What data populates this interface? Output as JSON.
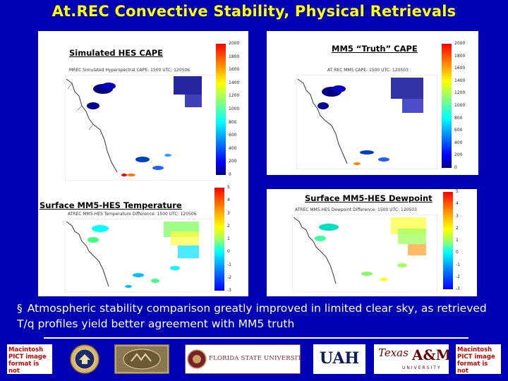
{
  "slide": {
    "title": "At.REC Convective Stability, Physical Retrievals",
    "bullet_mark": "§",
    "bullet_text": "Atmospheric stability comparison greatly improved in limited clear sky, as retrieved T/q profiles yield better agreement with MM5 truth"
  },
  "panels": [
    {
      "label": "Simulated HES CAPE",
      "caption": "MREC Simulated Hyperspectral CAPE: 1500 UTC: 120506",
      "ticks": [
        "2000",
        "1800",
        "1600",
        "1400",
        "1200",
        "1000",
        "800",
        "600",
        "400",
        "200",
        "0"
      ]
    },
    {
      "label": "MM5 “Truth” CAPE",
      "caption": "AT REC MM5 CAPE: 1500 UTC: 120503",
      "ticks": [
        "2000",
        "1800",
        "1600",
        "1400",
        "1200",
        "1000",
        "800",
        "600",
        "400",
        "200",
        "0"
      ]
    },
    {
      "label": "Surface MM5-HES Temperature",
      "caption": "ATREC MM5-HES Temperature Difference: 1500 UTC: 120506",
      "ticks": [
        "5",
        "4",
        "3",
        "2",
        "1",
        "0",
        "-1",
        "-2",
        "-3"
      ]
    },
    {
      "label": "Surface MM5-HES Dewpoint",
      "caption": "ATREC MM5-HES Dewpoint Difference: 1500 UTC: 120503",
      "ticks": [
        "5",
        "4",
        "3",
        "2",
        "1",
        "0",
        "-1",
        "-2",
        "-3"
      ]
    }
  ],
  "logos": {
    "pict_text": "Macintosh PICT image format is not supported",
    "fsu": "FLORIDA STATE UNIVERSITY",
    "uah": "UAH",
    "tamu_texas": "Texas",
    "tamu_am": "A&M",
    "tamu_sub": "UNIVERSITY",
    "navy_seal": "Navy seal",
    "unr_seal": "UNR seal"
  },
  "colors": {
    "background": "#0000b4",
    "title": "#ffff00",
    "text": "#ffffff",
    "pict_error_text": "#d00000",
    "tamu_maroon": "#6b0000",
    "fsu_garnet": "#7a1f2b"
  }
}
